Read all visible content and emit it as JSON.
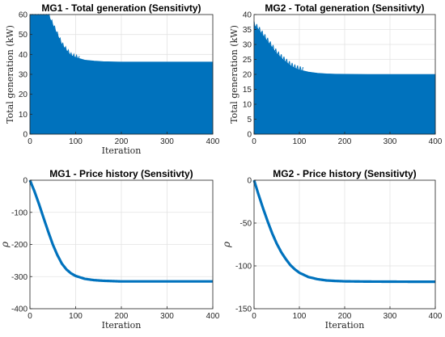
{
  "chart_data": [
    {
      "type": "area",
      "title": "MG1 - Total generation (Sensitivty)",
      "xlabel": "Iteration",
      "ylabel": "Total generation (kW)",
      "xlim": [
        0,
        400
      ],
      "ylim": [
        0,
        60
      ],
      "xticks": [
        0,
        100,
        200,
        300,
        400
      ],
      "yticks": [
        0,
        10,
        20,
        30,
        40,
        50,
        60
      ],
      "grid": true,
      "series": [
        {
          "color": "#0072BD",
          "x": [
            0,
            10,
            20,
            30,
            40,
            50,
            60,
            70,
            80,
            90,
            100,
            120,
            140,
            160,
            180,
            200,
            250,
            300,
            350,
            400
          ],
          "values": [
            60,
            60,
            60,
            60,
            60,
            55,
            50,
            45,
            42,
            39.5,
            38.5,
            37.2,
            36.7,
            36.4,
            36.3,
            36.2,
            36.2,
            36.2,
            36.2,
            36.2
          ]
        }
      ]
    },
    {
      "type": "area",
      "title": "MG2 - Total generation (Sensitivty)",
      "xlabel": "",
      "ylabel": "Total generation (kW)",
      "xlim": [
        0,
        400
      ],
      "ylim": [
        0,
        40
      ],
      "xticks": [
        0,
        100,
        200,
        300,
        400
      ],
      "yticks": [
        0,
        5,
        10,
        15,
        20,
        25,
        30,
        35,
        40
      ],
      "grid": true,
      "series": [
        {
          "color": "#0072BD",
          "x": [
            0,
            10,
            20,
            30,
            40,
            50,
            60,
            70,
            80,
            90,
            100,
            120,
            140,
            160,
            180,
            200,
            250,
            300,
            350,
            400
          ],
          "values": [
            36.5,
            35,
            33,
            31,
            29,
            27,
            25.5,
            24.2,
            23,
            22.1,
            21.5,
            20.8,
            20.4,
            20.2,
            20.1,
            20.05,
            20,
            20,
            20,
            20
          ]
        }
      ]
    },
    {
      "type": "line",
      "title": "MG1 - Price history (Sensitivty)",
      "xlabel": "Iteration",
      "ylabel": "ρ",
      "xlim": [
        0,
        400
      ],
      "ylim": [
        -400,
        0
      ],
      "xticks": [
        0,
        100,
        200,
        300,
        400
      ],
      "yticks": [
        -400,
        -300,
        -200,
        -100,
        0
      ],
      "grid": true,
      "series": [
        {
          "color": "#0072BD",
          "x": [
            0,
            10,
            20,
            30,
            40,
            50,
            60,
            70,
            80,
            90,
            100,
            120,
            140,
            160,
            180,
            200,
            250,
            300,
            350,
            400
          ],
          "values": [
            0,
            -35,
            -75,
            -118,
            -160,
            -200,
            -233,
            -260,
            -278,
            -290,
            -298,
            -307,
            -311,
            -313,
            -314,
            -315,
            -315,
            -315,
            -315,
            -315
          ]
        }
      ]
    },
    {
      "type": "line",
      "title": "MG2 - Price history (Sensitivty)",
      "xlabel": "Iteration",
      "ylabel": "ρ",
      "xlim": [
        0,
        400
      ],
      "ylim": [
        -150,
        0
      ],
      "xticks": [
        0,
        100,
        200,
        300,
        400
      ],
      "yticks": [
        -150,
        -100,
        -50,
        0
      ],
      "grid": true,
      "series": [
        {
          "color": "#0072BD",
          "x": [
            0,
            10,
            20,
            30,
            40,
            50,
            60,
            70,
            80,
            90,
            100,
            120,
            140,
            160,
            180,
            200,
            250,
            300,
            350,
            400
          ],
          "values": [
            0,
            -17,
            -33,
            -48,
            -62,
            -74,
            -84,
            -92,
            -99,
            -104,
            -108,
            -113,
            -115.5,
            -117,
            -117.6,
            -118,
            -118.3,
            -118.4,
            -118.5,
            -118.5
          ]
        }
      ]
    }
  ]
}
